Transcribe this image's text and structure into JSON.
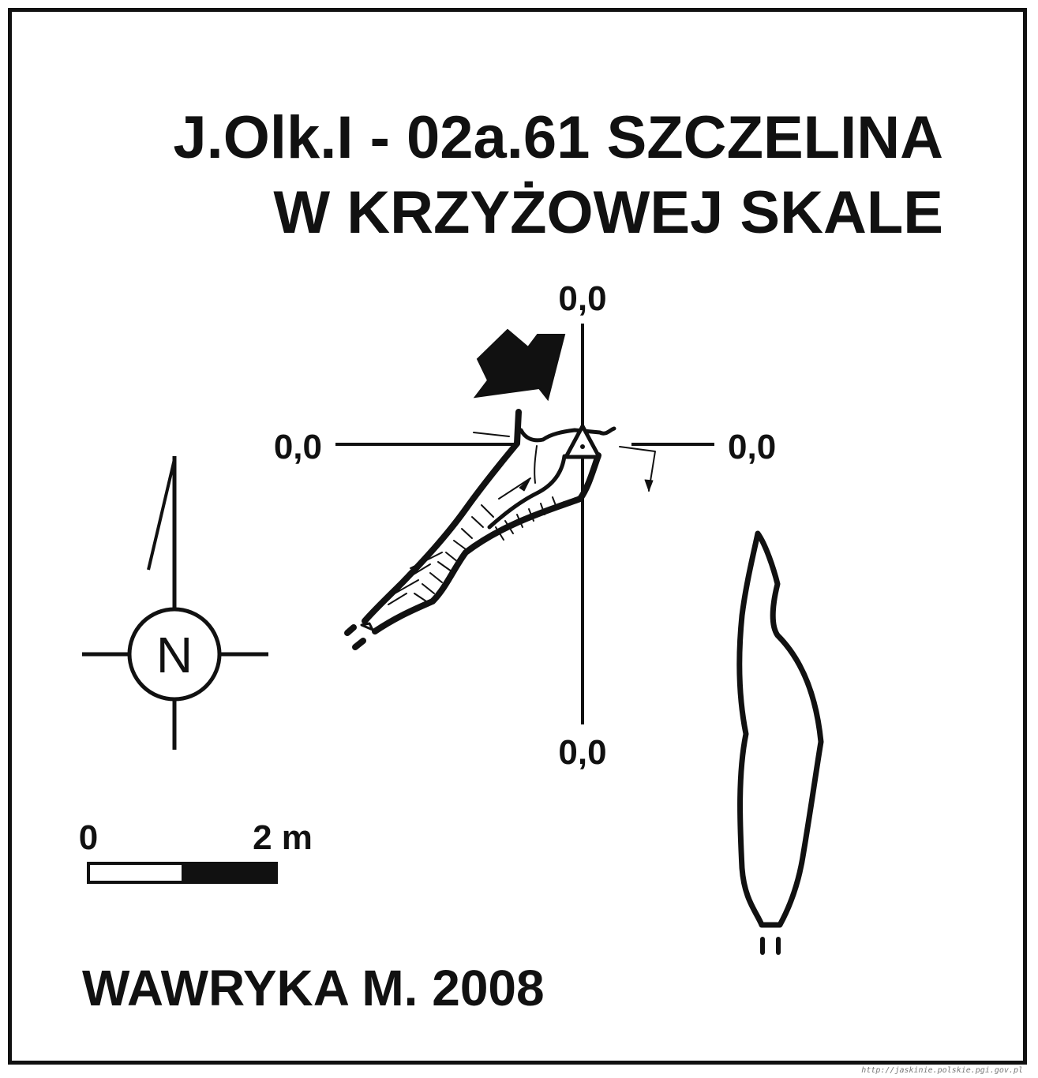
{
  "title": {
    "line1": "J.Olk.I - 02a.61  SZCZELINA",
    "line2": "W KRZYŻOWEJ SKALE"
  },
  "coordinates": {
    "top": "0,0",
    "left": "0,0",
    "right": "0,0",
    "bottom": "0,0"
  },
  "north_arrow": {
    "label": "N",
    "icon": "north-arrow-icon"
  },
  "scale_bar": {
    "start_label": "0",
    "end_label": "2 m"
  },
  "author": "WAWRYKA M. 2008",
  "watermark": "http://jaskinie.polskie.pgi.gov.pl",
  "colors": {
    "ink": "#111111",
    "paper": "#ffffff"
  }
}
